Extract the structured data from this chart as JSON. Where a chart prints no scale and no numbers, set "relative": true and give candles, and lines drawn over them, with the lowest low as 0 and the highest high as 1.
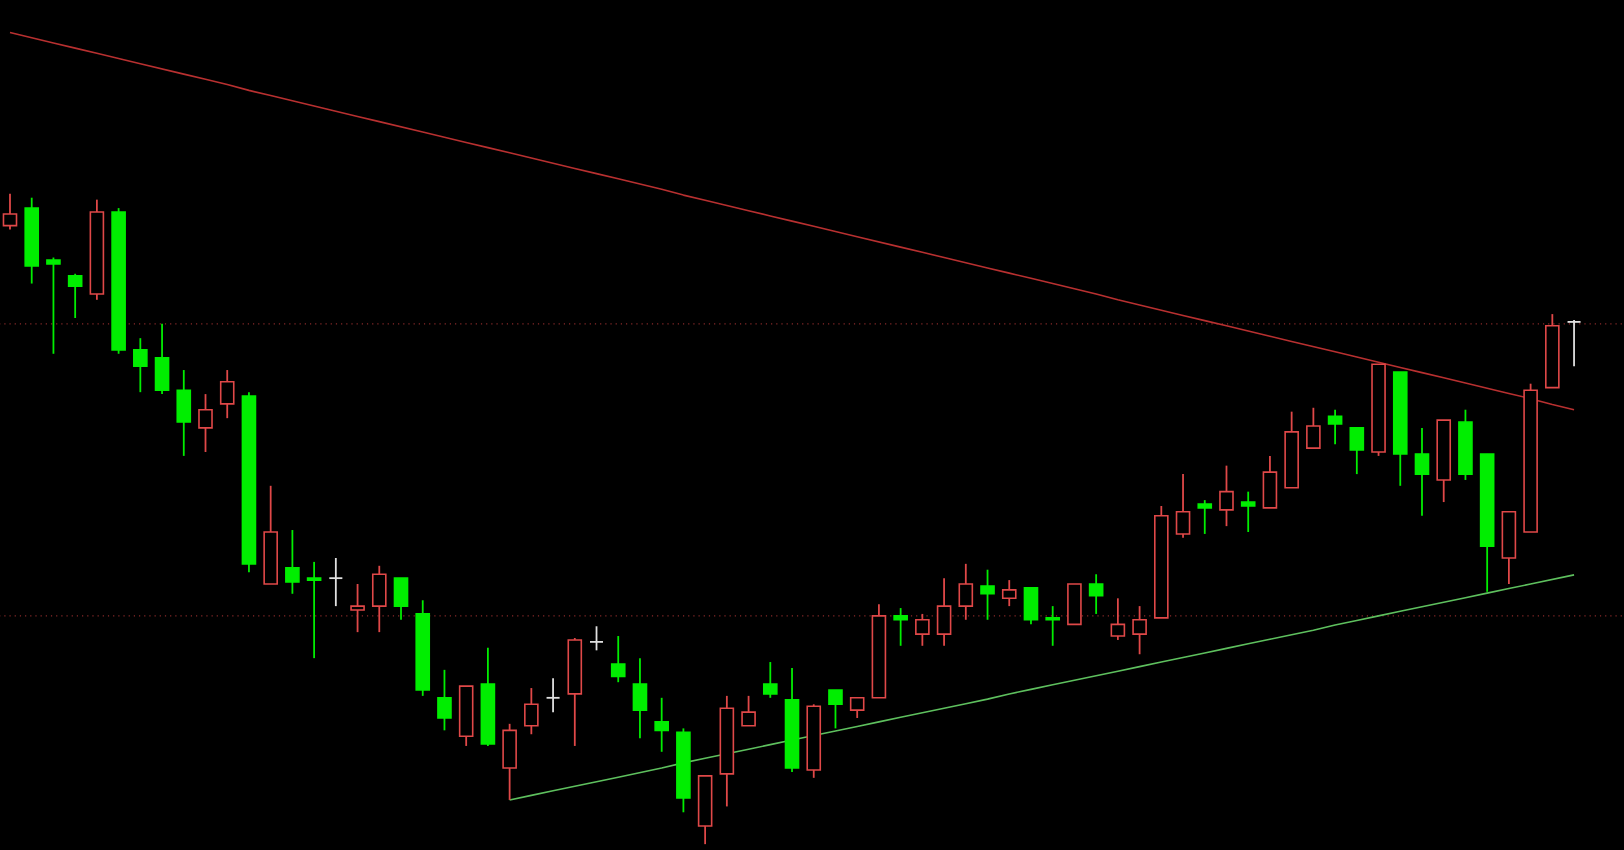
{
  "chart_data": {
    "type": "candlestick",
    "relative": true,
    "categories": [
      null,
      null,
      null,
      null,
      null,
      null,
      null,
      null,
      null,
      null,
      null,
      null,
      null,
      null,
      null,
      null,
      null,
      null,
      null,
      null,
      null,
      null,
      null,
      null,
      null,
      null,
      null,
      null,
      null,
      null,
      null,
      null,
      null,
      null,
      null,
      null,
      null,
      null,
      null,
      null,
      null,
      null,
      null,
      null,
      null,
      null,
      null,
      null,
      null,
      null,
      null,
      null,
      null,
      null,
      null,
      null,
      null,
      null,
      null,
      null,
      null,
      null,
      null,
      null,
      null,
      null,
      null,
      null,
      null,
      null,
      null,
      null,
      null
    ],
    "ohlc": [
      [
        0.951,
        1.0,
        0.945,
        0.969
      ],
      [
        0.978,
        0.994,
        0.862,
        0.889
      ],
      [
        0.898,
        0.902,
        0.754,
        0.892
      ],
      [
        0.874,
        0.877,
        0.809,
        0.858
      ],
      [
        0.846,
        0.991,
        0.837,
        0.972
      ],
      [
        0.972,
        0.978,
        0.754,
        0.76
      ],
      [
        0.76,
        0.778,
        0.695,
        0.735
      ],
      [
        0.748,
        0.8,
        0.692,
        0.698
      ],
      [
        0.698,
        0.729,
        0.597,
        0.649
      ],
      [
        0.64,
        0.692,
        0.603,
        0.668
      ],
      [
        0.677,
        0.729,
        0.655,
        0.711
      ],
      [
        0.689,
        0.695,
        0.418,
        0.431
      ],
      [
        0.4,
        0.551,
        0.4,
        0.48
      ],
      [
        0.425,
        0.483,
        0.385,
        0.403
      ],
      [
        0.409,
        0.434,
        0.286,
        0.406
      ],
      [
        0.409,
        0.44,
        0.366,
        0.409
      ],
      [
        0.36,
        0.4,
        0.326,
        0.366
      ],
      [
        0.366,
        0.428,
        0.326,
        0.415
      ],
      [
        0.409,
        0.409,
        0.345,
        0.366
      ],
      [
        0.354,
        0.375,
        0.228,
        0.237
      ],
      [
        0.225,
        0.268,
        0.175,
        0.194
      ],
      [
        0.166,
        0.243,
        0.151,
        0.243
      ],
      [
        0.246,
        0.302,
        0.151,
        0.154
      ],
      [
        0.117,
        0.185,
        0.068,
        0.175
      ],
      [
        0.182,
        0.24,
        0.169,
        0.215
      ],
      [
        0.225,
        0.255,
        0.203,
        0.225
      ],
      [
        0.231,
        0.317,
        0.151,
        0.314
      ],
      [
        0.311,
        0.335,
        0.298,
        0.311
      ],
      [
        0.277,
        0.32,
        0.249,
        0.258
      ],
      [
        0.246,
        0.286,
        0.163,
        0.206
      ],
      [
        0.188,
        0.225,
        0.142,
        0.175
      ],
      [
        0.172,
        0.178,
        0.049,
        0.071
      ],
      [
        0.028,
        0.105,
        0.0,
        0.105
      ],
      [
        0.108,
        0.228,
        0.058,
        0.209
      ],
      [
        0.182,
        0.228,
        0.182,
        0.203
      ],
      [
        0.246,
        0.28,
        0.225,
        0.231
      ],
      [
        0.222,
        0.271,
        0.111,
        0.117
      ],
      [
        0.114,
        0.215,
        0.102,
        0.212
      ],
      [
        0.237,
        0.237,
        0.178,
        0.215
      ],
      [
        0.206,
        0.225,
        0.194,
        0.225
      ],
      [
        0.225,
        0.369,
        0.225,
        0.351
      ],
      [
        0.351,
        0.363,
        0.305,
        0.345
      ],
      [
        0.323,
        0.354,
        0.305,
        0.345
      ],
      [
        0.323,
        0.409,
        0.305,
        0.366
      ],
      [
        0.366,
        0.431,
        0.345,
        0.4
      ],
      [
        0.397,
        0.422,
        0.345,
        0.385
      ],
      [
        0.378,
        0.406,
        0.366,
        0.391
      ],
      [
        0.394,
        0.394,
        0.338,
        0.345
      ],
      [
        0.348,
        0.366,
        0.305,
        0.345
      ],
      [
        0.338,
        0.4,
        0.338,
        0.4
      ],
      [
        0.4,
        0.415,
        0.354,
        0.382
      ],
      [
        0.32,
        0.378,
        0.314,
        0.338
      ],
      [
        0.323,
        0.366,
        0.292,
        0.345
      ],
      [
        0.348,
        0.52,
        0.348,
        0.505
      ],
      [
        0.477,
        0.569,
        0.471,
        0.511
      ],
      [
        0.523,
        0.529,
        0.477,
        0.517
      ],
      [
        0.514,
        0.582,
        0.489,
        0.542
      ],
      [
        0.526,
        0.542,
        0.48,
        0.52
      ],
      [
        0.517,
        0.597,
        0.517,
        0.572
      ],
      [
        0.548,
        0.665,
        0.548,
        0.634
      ],
      [
        0.609,
        0.671,
        0.609,
        0.643
      ],
      [
        0.658,
        0.668,
        0.615,
        0.646
      ],
      [
        0.64,
        0.64,
        0.569,
        0.606
      ],
      [
        0.603,
        0.738,
        0.597,
        0.738
      ],
      [
        0.726,
        0.726,
        0.551,
        0.6
      ],
      [
        0.6,
        0.64,
        0.505,
        0.569
      ],
      [
        0.56,
        0.652,
        0.526,
        0.652
      ],
      [
        0.649,
        0.668,
        0.56,
        0.569
      ],
      [
        0.6,
        0.6,
        0.388,
        0.458
      ],
      [
        0.44,
        0.511,
        0.4,
        0.511
      ],
      [
        0.48,
        0.708,
        0.48,
        0.698
      ],
      [
        0.702,
        0.815,
        0.702,
        0.797
      ],
      [
        0.803,
        0.806,
        0.735,
        0.803
      ]
    ],
    "colors": [
      "#e04848",
      "#00ee00",
      "#00ee00",
      "#00ee00",
      "#e04848",
      "#00ee00",
      "#00ee00",
      "#00ee00",
      "#00ee00",
      "#e04848",
      "#e04848",
      "#00ee00",
      "#e04848",
      "#00ee00",
      "#00ee00",
      "#e0e0e0",
      "#e04848",
      "#e04848",
      "#00ee00",
      "#00ee00",
      "#00ee00",
      "#e04848",
      "#00ee00",
      "#e04848",
      "#e04848",
      "#e0e0e0",
      "#e04848",
      "#e0e0e0",
      "#00ee00",
      "#00ee00",
      "#00ee00",
      "#00ee00",
      "#e04848",
      "#e04848",
      "#e04848",
      "#00ee00",
      "#00ee00",
      "#e04848",
      "#00ee00",
      "#e04848",
      "#e04848",
      "#00ee00",
      "#e04848",
      "#e04848",
      "#e04848",
      "#00ee00",
      "#e04848",
      "#00ee00",
      "#00ee00",
      "#e04848",
      "#00ee00",
      "#e04848",
      "#e04848",
      "#e04848",
      "#e04848",
      "#00ee00",
      "#e04848",
      "#00ee00",
      "#e04848",
      "#e04848",
      "#e04848",
      "#00ee00",
      "#00ee00",
      "#e04848",
      "#00ee00",
      "#00ee00",
      "#e04848",
      "#00ee00",
      "#00ee00",
      "#e04848",
      "#e04848",
      "#e04848",
      "#e0e0e0"
    ],
    "series": [
      {
        "type": "line",
        "values": [
          1.248,
          1.24,
          1.232,
          1.224,
          1.216,
          1.208,
          1.2,
          1.192,
          1.184,
          1.176,
          1.168,
          1.159,
          1.151,
          1.143,
          1.135,
          1.127,
          1.119,
          1.111,
          1.103,
          1.095,
          1.087,
          1.079,
          1.071,
          1.063,
          1.055,
          1.047,
          1.039,
          1.031,
          1.023,
          1.015,
          1.007,
          0.998,
          0.99,
          0.982,
          0.974,
          0.966,
          0.958,
          0.95,
          0.942,
          0.934,
          0.926,
          0.918,
          0.91,
          0.902,
          0.894,
          0.886,
          0.878,
          0.87,
          0.862,
          0.854,
          0.846,
          0.837,
          0.829,
          0.821,
          0.813,
          0.805,
          0.797,
          0.789,
          0.781,
          0.773,
          0.765,
          0.757,
          0.749,
          0.741,
          0.733,
          0.725,
          0.717,
          0.709,
          0.701,
          0.693,
          0.685,
          0.676,
          0.668
        ],
        "color": "#b83030"
      },
      {
        "type": "line",
        "values": [
          null,
          null,
          null,
          null,
          null,
          null,
          null,
          null,
          null,
          null,
          null,
          null,
          null,
          null,
          null,
          null,
          null,
          null,
          null,
          null,
          null,
          null,
          null,
          0.068,
          0.075,
          0.082,
          0.089,
          0.096,
          0.103,
          0.11,
          0.117,
          0.125,
          0.132,
          0.139,
          0.146,
          0.153,
          0.16,
          0.167,
          0.174,
          0.181,
          0.188,
          0.195,
          0.202,
          0.209,
          0.216,
          0.223,
          0.231,
          0.238,
          0.245,
          0.252,
          0.259,
          0.266,
          0.273,
          0.28,
          0.287,
          0.294,
          0.301,
          0.308,
          0.315,
          0.322,
          0.329,
          0.337,
          0.344,
          0.351,
          0.358,
          0.365,
          0.372,
          0.379,
          0.386,
          0.393,
          0.4,
          0.407,
          0.414
        ],
        "color": "#5ec05e"
      }
    ],
    "ref_lines": [
      {
        "axis": "y",
        "value": 0.8,
        "color": "#8a2a2a",
        "line_style": "dotted"
      },
      {
        "axis": "y",
        "value": 0.351,
        "color": "#8a2a2a",
        "line_style": "dotted"
      }
    ]
  }
}
